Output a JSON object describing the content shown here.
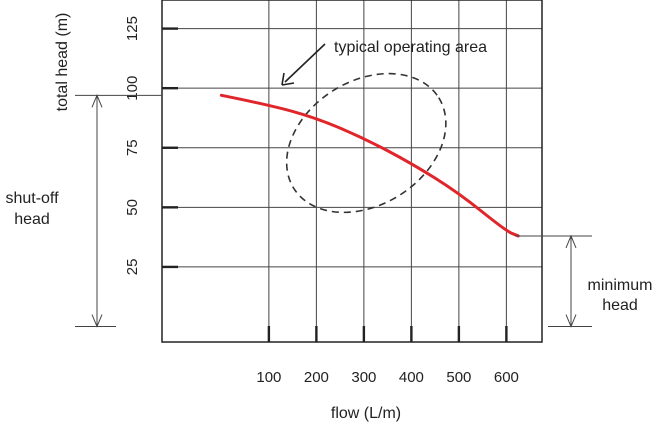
{
  "chart_data": {
    "type": "line",
    "title": "",
    "xlabel": "flow (L/m)",
    "ylabel": "total head (m)",
    "xlim": [
      -125,
      675
    ],
    "ylim": [
      -6.5,
      137
    ],
    "x_ticks": [
      100,
      200,
      300,
      400,
      500,
      600
    ],
    "y_ticks": [
      25,
      50,
      75,
      100,
      125
    ],
    "grid": true,
    "series": [
      {
        "name": "",
        "color": "#e0262b",
        "x": [
          0,
          100,
          200,
          300,
          400,
          500,
          600,
          625
        ],
        "y": [
          97,
          93,
          87.5,
          79,
          68.5,
          56,
          40,
          38
        ]
      }
    ],
    "operating_area": {
      "cx": 305,
      "cy": 77,
      "rx": 180,
      "ry": 26,
      "angle_deg": -32
    },
    "annotations": {
      "operating_area": "typical operating area",
      "shut_off_line1": "shut-off",
      "shut_off_line2": "head",
      "minimum_line1": "minimum",
      "minimum_line2": "head"
    },
    "shut_off_head": 97,
    "minimum_head": 38
  }
}
